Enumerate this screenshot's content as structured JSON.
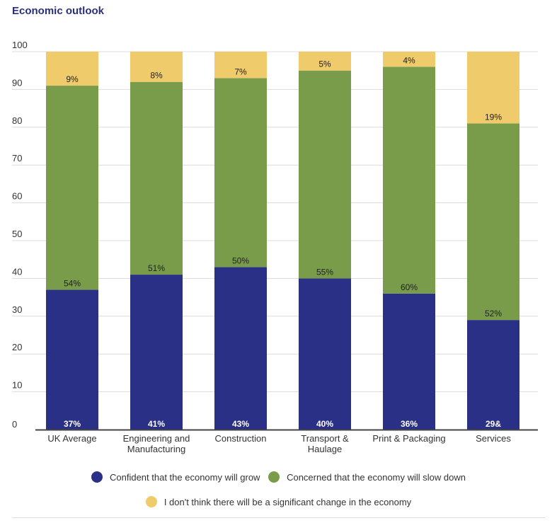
{
  "chart_data": {
    "type": "bar",
    "stacked": true,
    "title": "Economic outlook",
    "xlabel": "",
    "ylabel": "",
    "ylim": [
      0,
      100
    ],
    "yticks": [
      0,
      10,
      20,
      30,
      40,
      50,
      60,
      70,
      80,
      90,
      100
    ],
    "grid": true,
    "legend_position": "bottom",
    "categories": [
      [
        "UK Average"
      ],
      [
        "Engineering and",
        "Manufacturing"
      ],
      [
        "Construction"
      ],
      [
        "Transport &",
        "Haulage"
      ],
      [
        "Print & Packaging"
      ],
      [
        "Services"
      ]
    ],
    "series": [
      {
        "name": "Confident that the economy will grow",
        "color": "#2b3087",
        "values": [
          37,
          41,
          43,
          40,
          36,
          29
        ],
        "labels": [
          "37%",
          "41%",
          "43%",
          "40%",
          "36%",
          "29&"
        ]
      },
      {
        "name": "Concerned that the economy will slow down",
        "color": "#789c4a",
        "values": [
          54,
          51,
          50,
          55,
          60,
          52
        ],
        "labels": [
          "54%",
          "51%",
          "50%",
          "55%",
          "60%",
          "52%"
        ]
      },
      {
        "name": "I don't think there will be a significant change in the economy",
        "color": "#efcb6b",
        "values": [
          9,
          8,
          7,
          5,
          4,
          19
        ],
        "labels": [
          "9%",
          "8%",
          "7%",
          "5%",
          "4%",
          "19%"
        ]
      }
    ]
  }
}
